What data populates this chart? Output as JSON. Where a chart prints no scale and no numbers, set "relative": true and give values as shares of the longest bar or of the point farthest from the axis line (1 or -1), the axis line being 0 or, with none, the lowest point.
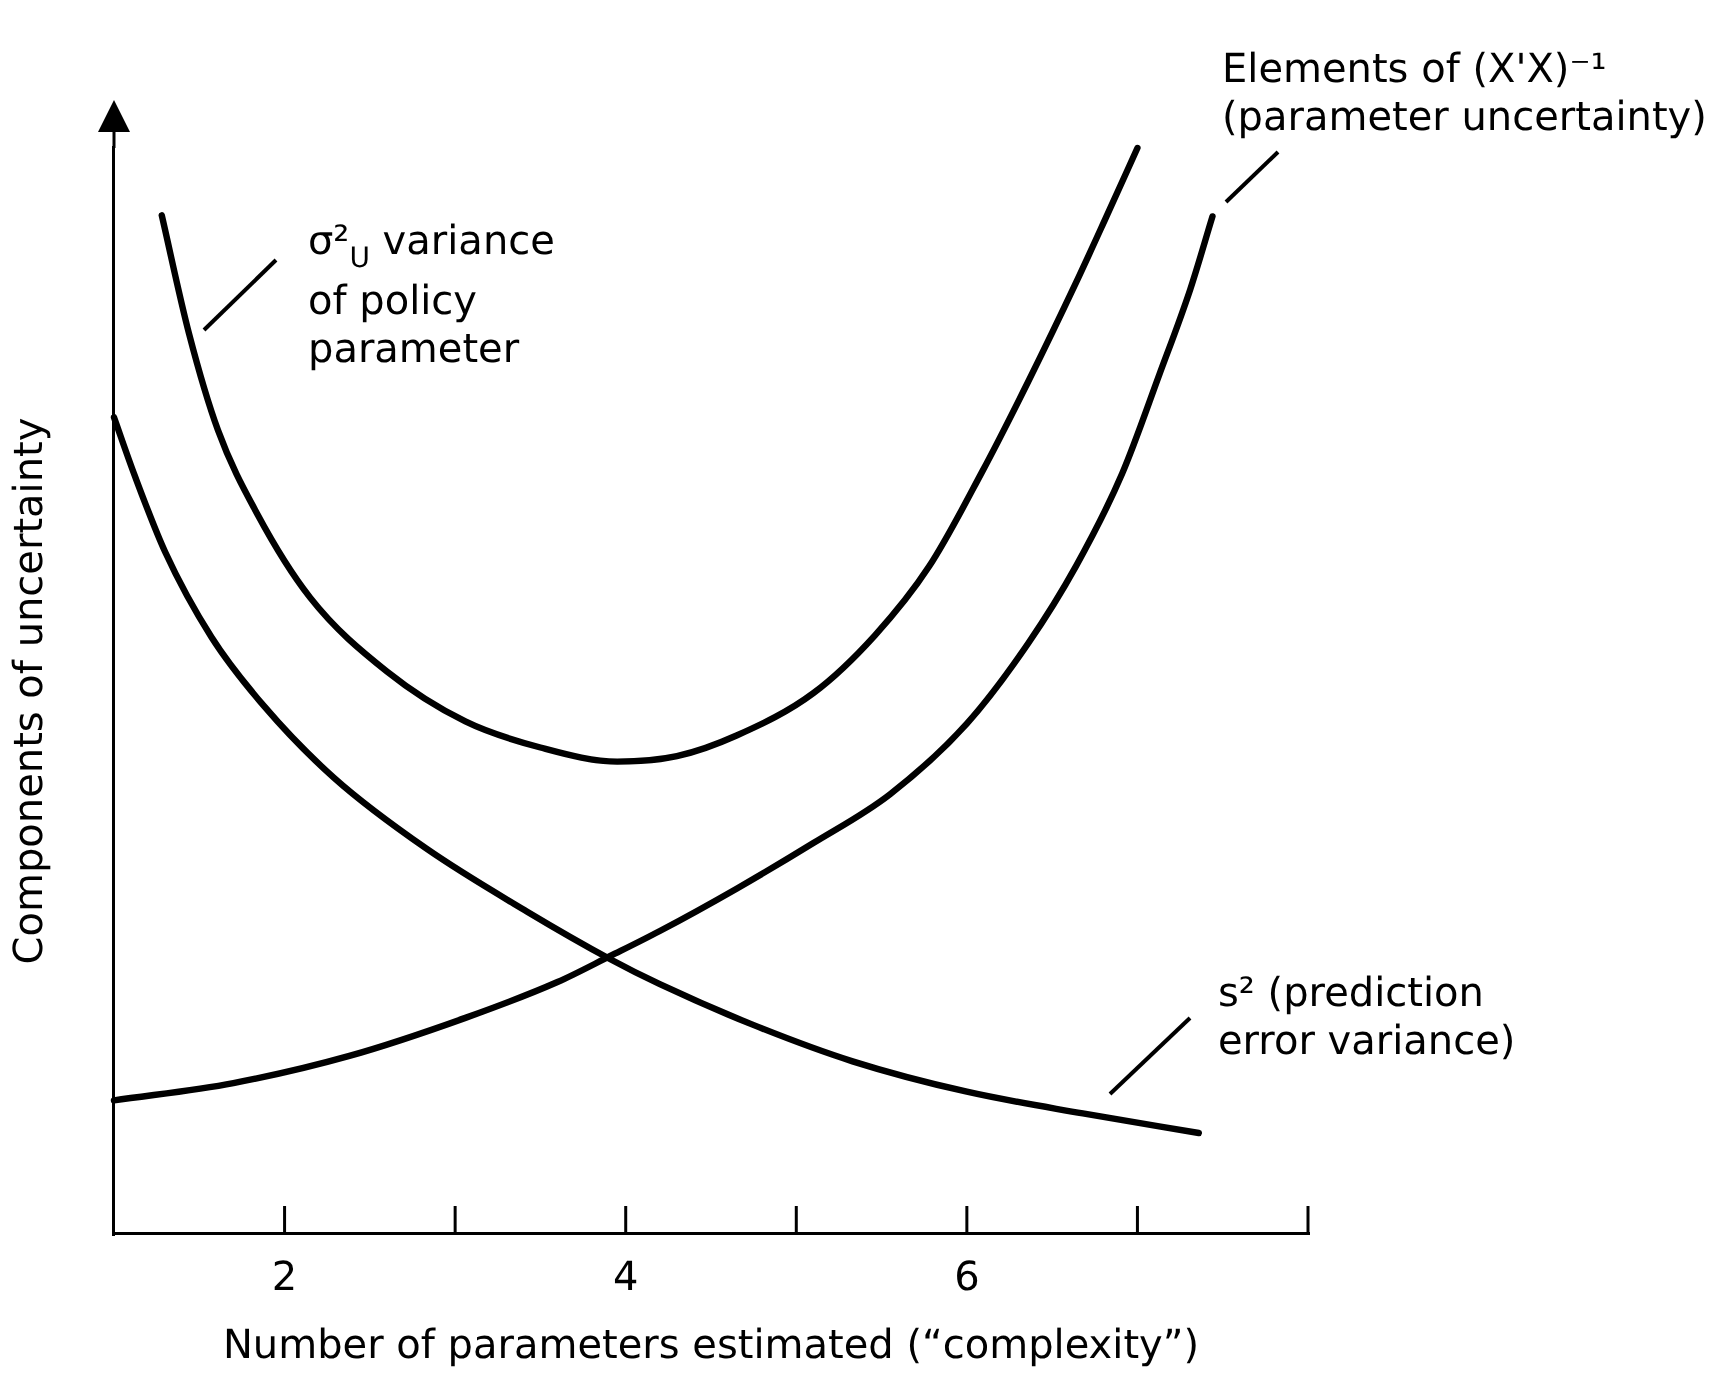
{
  "chart_data": {
    "type": "line",
    "xlabel": "Number of parameters estimated (“complexity”)",
    "ylabel": "Components of uncertainty",
    "xlim": [
      1,
      8
    ],
    "xticks": [
      2,
      {
        "value": 3,
        "label": null
      },
      4,
      {
        "value": 5,
        "label": null
      },
      6,
      {
        "value": 7,
        "label": null
      },
      {
        "value": 8,
        "label": null
      }
    ],
    "relative": true,
    "marker": "none",
    "series": [
      {
        "name": "σ²$_{U}$ variance of policy parameter",
        "color": "#000000",
        "x": [
          1.28,
          1.44,
          1.61,
          1.84,
          2.15,
          2.6,
          3.06,
          3.5,
          3.95,
          4.3,
          4.65,
          5.1,
          5.46,
          5.78,
          6.09,
          6.36,
          6.64,
          6.81,
          7.0
        ],
        "values": [
          0.938,
          0.829,
          0.74,
          0.663,
          0.586,
          0.518,
          0.472,
          0.448,
          0.435,
          0.44,
          0.459,
          0.498,
          0.551,
          0.615,
          0.702,
          0.785,
          0.876,
          0.934,
          1
        ]
      },
      {
        "name": "Elements of (X'X)⁻¹ (parameter uncertainty)",
        "color": "#000000",
        "x": [
          1,
          1.7,
          2.38,
          3.06,
          3.6,
          3.91,
          4.2,
          4.65,
          5.1,
          5.55,
          6.0,
          6.36,
          6.64,
          6.91,
          7.13,
          7.31,
          7.44
        ],
        "values": [
          0.123,
          0.139,
          0.164,
          0.199,
          0.232,
          0.256,
          0.279,
          0.318,
          0.36,
          0.405,
          0.47,
          0.544,
          0.615,
          0.7,
          0.792,
          0.87,
          0.937
        ]
      },
      {
        "name": "s² (prediction error variance)",
        "color": "#000000",
        "x": [
          1,
          1.12,
          1.3,
          1.57,
          1.88,
          2.29,
          2.83,
          3.42,
          3.91,
          4.2,
          4.74,
          5.33,
          6.0,
          6.68,
          7.36
        ],
        "values": [
          0.752,
          0.699,
          0.628,
          0.55,
          0.486,
          0.42,
          0.355,
          0.297,
          0.253,
          0.23,
          0.193,
          0.159,
          0.131,
          0.111,
          0.093
        ]
      }
    ]
  }
}
